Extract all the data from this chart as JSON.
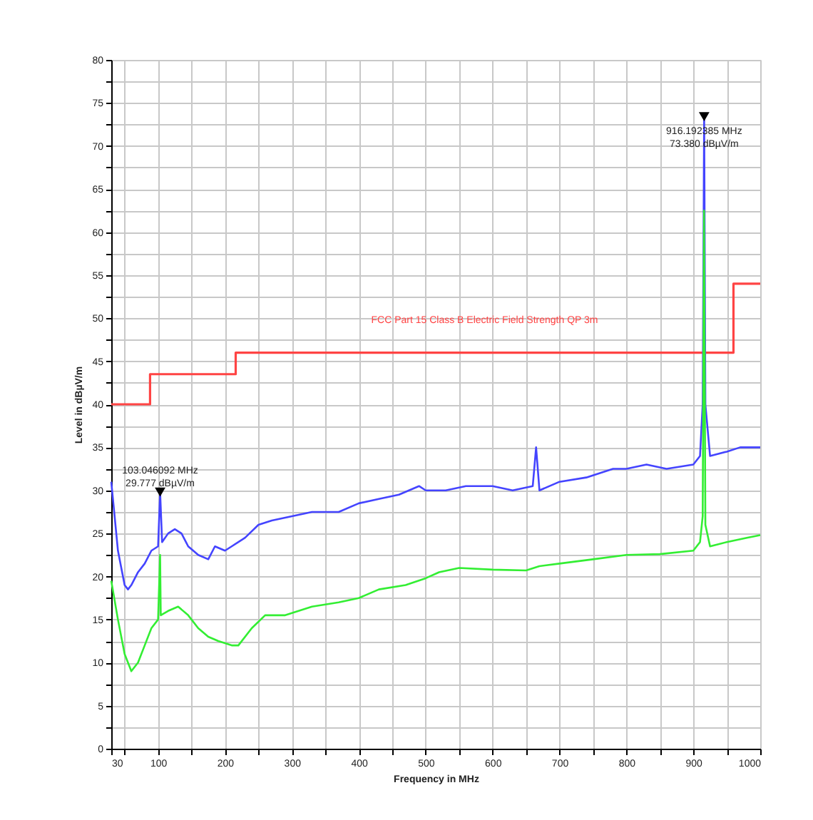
{
  "chart_data": {
    "type": "line",
    "xlabel": "Frequency in MHz",
    "ylabel": "Level in dBµV/m",
    "xlim": [
      30,
      1000
    ],
    "ylim": [
      0,
      80
    ],
    "xticks": [
      30,
      {
        "value": 50,
        "label": null
      },
      100,
      {
        "value": 150,
        "label": null
      },
      200,
      {
        "value": 250,
        "label": null
      },
      300,
      {
        "value": 350,
        "label": null
      },
      400,
      {
        "value": 450,
        "label": null
      },
      500,
      {
        "value": 550,
        "label": null
      },
      600,
      {
        "value": 650,
        "label": null
      },
      700,
      {
        "value": 750,
        "label": null
      },
      800,
      {
        "value": 850,
        "label": null
      },
      900,
      {
        "value": 950,
        "label": null
      },
      1000
    ],
    "yticks": [
      0,
      {
        "value": 2.5,
        "label": null
      },
      5,
      {
        "value": 7.5,
        "label": null
      },
      10,
      {
        "value": 12.5,
        "label": null
      },
      15,
      {
        "value": 17.5,
        "label": null
      },
      20,
      {
        "value": 22.5,
        "label": null
      },
      25,
      {
        "value": 27.5,
        "label": null
      },
      30,
      {
        "value": 32.5,
        "label": null
      },
      35,
      {
        "value": 37.5,
        "label": null
      },
      40,
      {
        "value": 42.5,
        "label": null
      },
      45,
      {
        "value": 47.5,
        "label": null
      },
      50,
      {
        "value": 52.5,
        "label": null
      },
      55,
      {
        "value": 57.5,
        "label": null
      },
      60,
      {
        "value": 62.5,
        "label": null
      },
      65,
      {
        "value": 67.5,
        "label": null
      },
      70,
      {
        "value": 72.5,
        "label": null
      },
      75,
      {
        "value": 77.5,
        "label": null
      },
      80
    ],
    "grid": true,
    "series": [
      {
        "type": "step",
        "name": "FCC Part 15 Class B Electric Field Strength QP 3m",
        "color": "#ff4444",
        "x": [
          30,
          88,
          216,
          960,
          1000
        ],
        "values": [
          40,
          43.5,
          46,
          54,
          54
        ]
      },
      {
        "color": "#4444ff",
        "x": [
          30,
          35,
          40,
          45,
          50,
          55,
          60,
          70,
          80,
          90,
          100,
          103.046,
          106,
          115,
          125,
          135,
          145,
          160,
          175,
          185,
          200,
          210,
          230,
          250,
          270,
          300,
          330,
          370,
          400,
          430,
          460,
          490,
          500,
          530,
          560,
          600,
          630,
          660,
          665,
          670,
          700,
          740,
          780,
          800,
          830,
          860,
          900,
          910,
          914,
          916.192,
          918,
          925,
          950,
          970,
          990,
          1000
        ],
        "values": [
          31,
          27,
          23,
          21,
          19,
          18.5,
          19,
          20.5,
          21.5,
          23,
          23.5,
          29.8,
          24,
          25,
          25.5,
          25,
          23.5,
          22.5,
          22,
          23.5,
          23,
          23.5,
          24.5,
          26,
          26.5,
          27,
          27.5,
          27.5,
          28.5,
          29,
          29.5,
          30.5,
          30,
          30,
          30.5,
          30.5,
          30,
          30.5,
          35,
          30,
          31,
          31.5,
          32.5,
          32.5,
          33,
          32.5,
          33,
          34,
          40,
          73.4,
          40,
          34,
          34.5,
          35,
          35,
          35
        ]
      },
      {
        "type": "scatter",
        "marker": "triangle",
        "color": "#000000",
        "x": [
          103.046092,
          916.192385
        ],
        "values": [
          29.8,
          73.4
        ]
      },
      {
        "color": "#33ee33",
        "x": [
          30,
          40,
          50,
          60,
          70,
          80,
          90,
          100,
          103,
          104,
          115,
          130,
          145,
          160,
          175,
          190,
          210,
          220,
          240,
          260,
          290,
          330,
          370,
          400,
          430,
          470,
          500,
          520,
          550,
          600,
          650,
          670,
          700,
          750,
          800,
          850,
          900,
          910,
          914,
          916,
          918,
          925,
          950,
          980,
          1000
        ],
        "values": [
          19.5,
          15,
          11,
          9,
          10,
          12,
          14,
          15,
          22.5,
          15.5,
          16,
          16.5,
          15.5,
          14,
          13,
          12.5,
          12,
          12,
          14,
          15.5,
          15.5,
          16.5,
          17,
          17.5,
          18.5,
          19,
          19.8,
          20.5,
          21,
          20.8,
          20.7,
          21.2,
          21.5,
          22,
          22.5,
          22.6,
          23,
          24,
          27,
          62.5,
          26,
          23.5,
          24,
          24.5,
          24.8
        ]
      }
    ],
    "annotations": [
      {
        "text": "103.046092 MHz\n29.777 dBµV/m",
        "x": 103.046092,
        "y": 29.777
      },
      {
        "text": "916.192385 MHz\n73.380 dBµV/m",
        "x": 916.192385,
        "y": 73.38
      }
    ]
  }
}
